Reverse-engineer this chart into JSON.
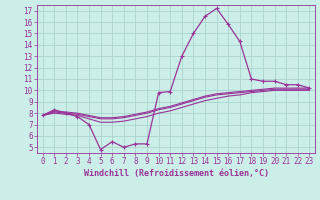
{
  "xlabel": "Windchill (Refroidissement éolien,°C)",
  "bg_color": "#cceee8",
  "grid_color": "#aad4cc",
  "line_color": "#993399",
  "xlim": [
    -0.5,
    23.5
  ],
  "ylim": [
    4.5,
    17.5
  ],
  "yticks": [
    5,
    6,
    7,
    8,
    9,
    10,
    11,
    12,
    13,
    14,
    15,
    16,
    17
  ],
  "xticks": [
    0,
    1,
    2,
    3,
    4,
    5,
    6,
    7,
    8,
    9,
    10,
    11,
    12,
    13,
    14,
    15,
    16,
    17,
    18,
    19,
    20,
    21,
    22,
    23
  ],
  "series": [
    {
      "x": [
        0,
        1,
        2,
        3,
        4,
        5,
        6,
        7,
        8,
        9,
        10,
        11,
        12,
        13,
        14,
        15,
        16,
        17,
        18,
        19,
        20,
        21,
        22,
        23
      ],
      "y": [
        7.8,
        8.3,
        8.0,
        7.7,
        7.0,
        4.8,
        5.5,
        5.0,
        5.3,
        5.3,
        9.8,
        9.9,
        13.0,
        15.0,
        16.5,
        17.2,
        15.8,
        14.3,
        11.0,
        10.8,
        10.8,
        10.5,
        10.5,
        10.2
      ],
      "marker": true
    },
    {
      "x": [
        0,
        1,
        2,
        3,
        4,
        5,
        6,
        7,
        8,
        9,
        10,
        11,
        12,
        13,
        14,
        15,
        16,
        17,
        18,
        19,
        20,
        21,
        22,
        23
      ],
      "y": [
        7.8,
        8.0,
        7.9,
        7.8,
        7.5,
        7.2,
        7.2,
        7.3,
        7.5,
        7.7,
        8.0,
        8.2,
        8.5,
        8.8,
        9.1,
        9.3,
        9.5,
        9.6,
        9.8,
        9.9,
        10.0,
        10.0,
        10.0,
        10.0
      ],
      "marker": false
    },
    {
      "x": [
        0,
        1,
        2,
        3,
        4,
        5,
        6,
        7,
        8,
        9,
        10,
        11,
        12,
        13,
        14,
        15,
        16,
        17,
        18,
        19,
        20,
        21,
        22,
        23
      ],
      "y": [
        7.8,
        8.1,
        8.0,
        7.9,
        7.7,
        7.5,
        7.5,
        7.6,
        7.8,
        8.0,
        8.3,
        8.5,
        8.8,
        9.1,
        9.4,
        9.6,
        9.7,
        9.8,
        9.9,
        10.0,
        10.1,
        10.1,
        10.1,
        10.1
      ],
      "marker": false
    },
    {
      "x": [
        0,
        1,
        2,
        3,
        4,
        5,
        6,
        7,
        8,
        9,
        10,
        11,
        12,
        13,
        14,
        15,
        16,
        17,
        18,
        19,
        20,
        21,
        22,
        23
      ],
      "y": [
        7.8,
        8.2,
        8.1,
        8.0,
        7.8,
        7.6,
        7.6,
        7.7,
        7.9,
        8.1,
        8.4,
        8.6,
        8.9,
        9.2,
        9.5,
        9.7,
        9.8,
        9.9,
        10.0,
        10.1,
        10.2,
        10.2,
        10.2,
        10.2
      ],
      "marker": false
    }
  ],
  "tick_fontsize": 5.5,
  "xlabel_fontsize": 6.0
}
